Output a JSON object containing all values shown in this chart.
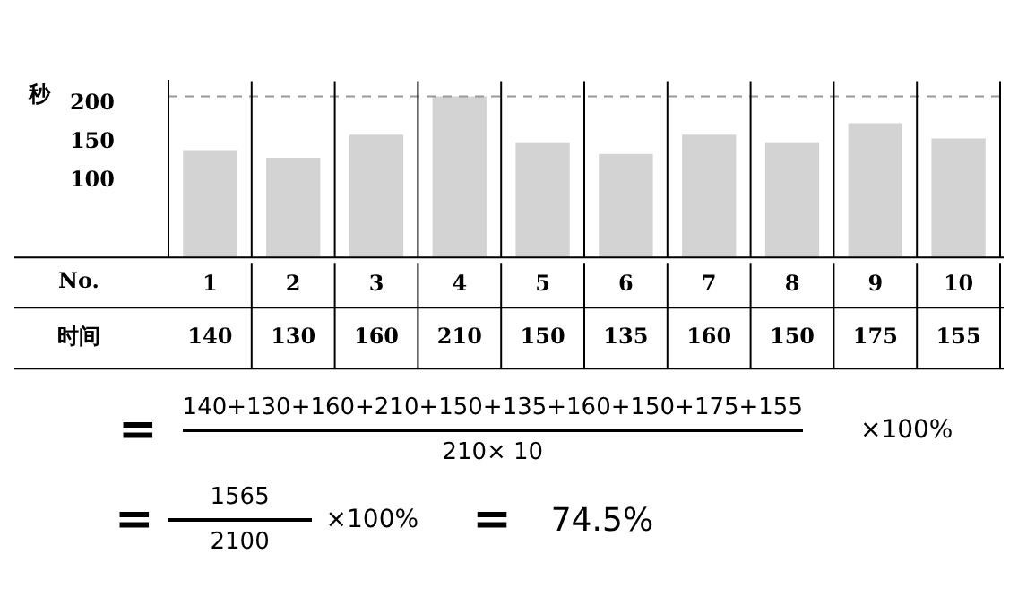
{
  "chart_data": {
    "type": "bar",
    "ylabel": "秒",
    "xlabel": "No.",
    "categories": [
      "1",
      "2",
      "3",
      "4",
      "5",
      "6",
      "7",
      "8",
      "9",
      "10"
    ],
    "values": [
      140,
      130,
      160,
      210,
      150,
      135,
      160,
      150,
      175,
      155
    ],
    "color": "#d3d3d3",
    "ylim": [
      0,
      230
    ],
    "yticks": [
      100,
      150,
      200
    ],
    "grid": false,
    "legend": false,
    "data_labels": true,
    "ref_lines": [
      {
        "axis": "y",
        "value": 210,
        "color": "#999999",
        "line_style": "dashed"
      }
    ],
    "annotations": [
      "时间",
      "=",
      "140+130+160+210+150+135+160+150+175+155",
      "210× 10",
      "×100%",
      "=",
      "1565",
      "2100",
      "×100%",
      "=",
      "74.5%"
    ]
  }
}
